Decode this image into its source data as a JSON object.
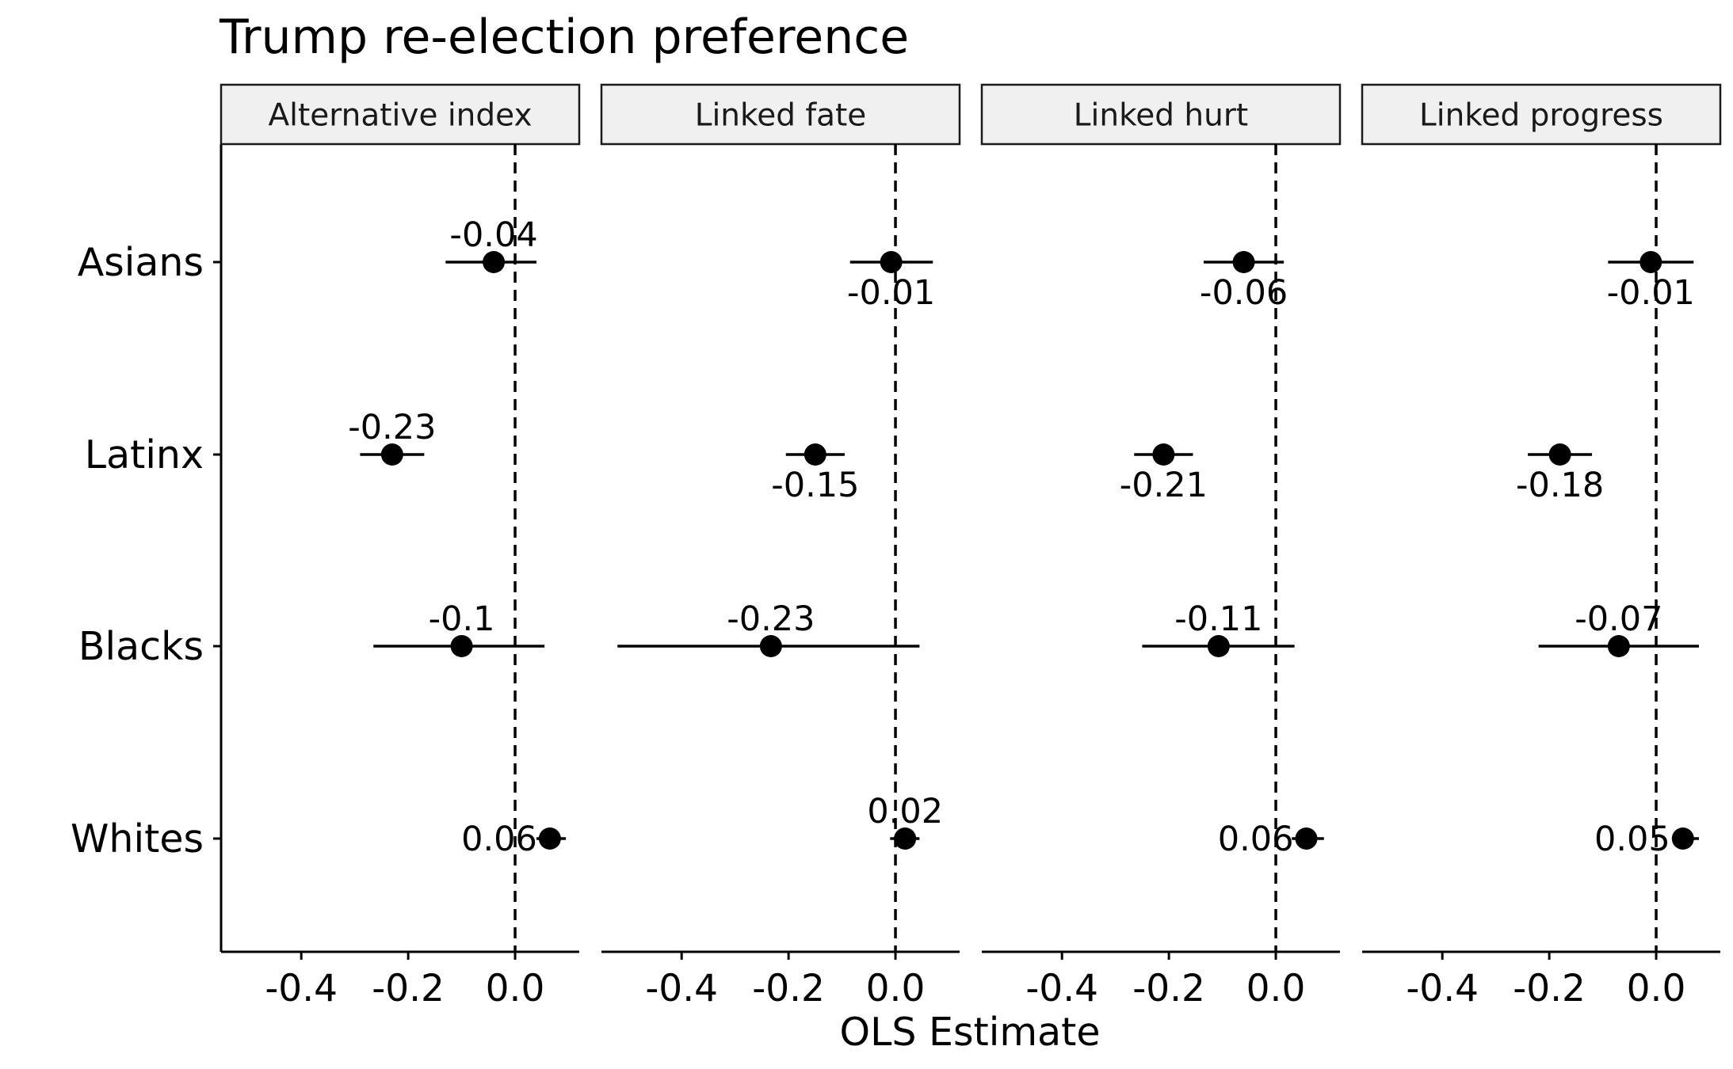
{
  "chart_data": {
    "type": "scatter",
    "subtype": "coefficient-plot",
    "title": "Trump re-election preference",
    "xlabel": "OLS Estimate",
    "ylabel": "",
    "xlim": [
      -0.55,
      0.12
    ],
    "x_ticks": [
      "-0.4",
      "-0.2",
      "0.0"
    ],
    "reference_line": 0.0,
    "categories": [
      "Asians",
      "Latinx",
      "Blacks",
      "Whites"
    ],
    "panels": [
      {
        "name": "Alternative index",
        "points": [
          {
            "group": "Asians",
            "estimate": -0.04,
            "lower": -0.13,
            "upper": 0.04,
            "label": "-0.04",
            "label_pos": "above"
          },
          {
            "group": "Latinx",
            "estimate": -0.23,
            "lower": -0.29,
            "upper": -0.17,
            "label": "-0.23",
            "label_pos": "above"
          },
          {
            "group": "Blacks",
            "estimate": -0.1,
            "lower": -0.265,
            "upper": 0.055,
            "label": "-0.1",
            "label_pos": "above"
          },
          {
            "group": "Whites",
            "estimate": 0.065,
            "lower": 0.04,
            "upper": 0.095,
            "label": "0.06",
            "label_pos": "left"
          }
        ]
      },
      {
        "name": "Linked fate",
        "points": [
          {
            "group": "Asians",
            "estimate": -0.008,
            "lower": -0.085,
            "upper": 0.07,
            "label": "-0.01",
            "label_pos": "below"
          },
          {
            "group": "Latinx",
            "estimate": -0.15,
            "lower": -0.205,
            "upper": -0.095,
            "label": "-0.15",
            "label_pos": "below"
          },
          {
            "group": "Blacks",
            "estimate": -0.233,
            "lower": -0.52,
            "upper": 0.045,
            "label": "-0.23",
            "label_pos": "above"
          },
          {
            "group": "Whites",
            "estimate": 0.018,
            "lower": -0.01,
            "upper": 0.045,
            "label": "0.02",
            "label_pos": "above"
          }
        ]
      },
      {
        "name": "Linked hurt",
        "points": [
          {
            "group": "Asians",
            "estimate": -0.06,
            "lower": -0.135,
            "upper": 0.015,
            "label": "-0.06",
            "label_pos": "below"
          },
          {
            "group": "Latinx",
            "estimate": -0.21,
            "lower": -0.265,
            "upper": -0.155,
            "label": "-0.21",
            "label_pos": "below"
          },
          {
            "group": "Blacks",
            "estimate": -0.107,
            "lower": -0.25,
            "upper": 0.035,
            "label": "-0.11",
            "label_pos": "above"
          },
          {
            "group": "Whites",
            "estimate": 0.057,
            "lower": 0.03,
            "upper": 0.09,
            "label": "0.06",
            "label_pos": "left"
          }
        ]
      },
      {
        "name": "Linked progress",
        "points": [
          {
            "group": "Asians",
            "estimate": -0.01,
            "lower": -0.09,
            "upper": 0.07,
            "label": "-0.01",
            "label_pos": "below"
          },
          {
            "group": "Latinx",
            "estimate": -0.18,
            "lower": -0.24,
            "upper": -0.12,
            "label": "-0.18",
            "label_pos": "below"
          },
          {
            "group": "Blacks",
            "estimate": -0.07,
            "lower": -0.22,
            "upper": 0.08,
            "label": "-0.07",
            "label_pos": "above"
          },
          {
            "group": "Whites",
            "estimate": 0.05,
            "lower": 0.03,
            "upper": 0.08,
            "label": "0.05",
            "label_pos": "left"
          }
        ]
      }
    ]
  }
}
